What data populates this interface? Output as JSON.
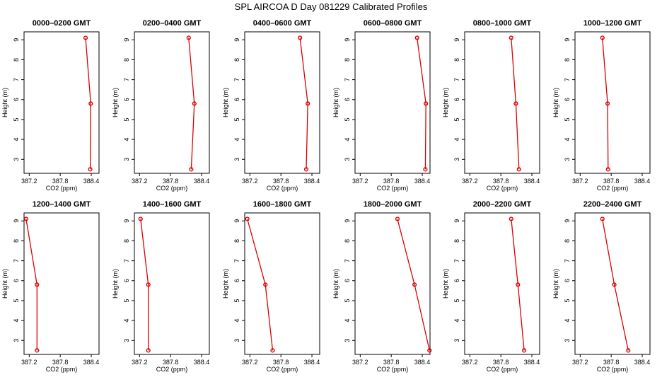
{
  "figure": {
    "title": "SPL AIRCOA D  Day 081229  Calibrated Profiles"
  },
  "colors": {
    "series": "#dd0000",
    "axis": "#000000"
  },
  "chart_data": [
    {
      "type": "line",
      "title": "0000–0200 GMT",
      "xlabel": "CO2 (ppm)",
      "ylabel": "Height (m)",
      "xlim": [
        387.1,
        388.55
      ],
      "ylim": [
        2.3,
        9.4
      ],
      "xticks": [
        "387.2",
        "387.8",
        "388.4"
      ],
      "yticks": [
        "3",
        "4",
        "5",
        "6",
        "7",
        "8",
        "9"
      ],
      "x": [
        388.29,
        388.39,
        388.38
      ],
      "y": [
        9.1,
        5.8,
        2.5
      ]
    },
    {
      "type": "line",
      "title": "0200–0400 GMT",
      "xlabel": "CO2 (ppm)",
      "ylabel": "Height (m)",
      "xlim": [
        387.1,
        388.55
      ],
      "ylim": [
        2.3,
        9.4
      ],
      "xticks": [
        "387.2",
        "387.8",
        "388.4"
      ],
      "yticks": [
        "3",
        "4",
        "5",
        "6",
        "7",
        "8",
        "9"
      ],
      "x": [
        388.15,
        388.26,
        388.2
      ],
      "y": [
        9.1,
        5.8,
        2.5
      ]
    },
    {
      "type": "line",
      "title": "0400–0600 GMT",
      "xlabel": "CO2 (ppm)",
      "ylabel": "Height (m)",
      "xlim": [
        387.1,
        388.55
      ],
      "ylim": [
        2.3,
        9.4
      ],
      "xticks": [
        "387.2",
        "387.8",
        "388.4"
      ],
      "yticks": [
        "3",
        "4",
        "5",
        "6",
        "7",
        "8",
        "9"
      ],
      "x": [
        388.17,
        388.32,
        388.29
      ],
      "y": [
        9.1,
        5.8,
        2.5
      ]
    },
    {
      "type": "line",
      "title": "0600–0800 GMT",
      "xlabel": "CO2 (ppm)",
      "ylabel": "Height (m)",
      "xlim": [
        387.1,
        388.55
      ],
      "ylim": [
        2.3,
        9.4
      ],
      "xticks": [
        "387.2",
        "387.8",
        "388.4"
      ],
      "yticks": [
        "3",
        "4",
        "5",
        "6",
        "7",
        "8",
        "9"
      ],
      "x": [
        388.3,
        388.47,
        388.46
      ],
      "y": [
        9.1,
        5.8,
        2.5
      ]
    },
    {
      "type": "line",
      "title": "0800–1000 GMT",
      "xlabel": "CO2 (ppm)",
      "ylabel": "Height (m)",
      "xlim": [
        387.1,
        388.55
      ],
      "ylim": [
        2.3,
        9.4
      ],
      "xticks": [
        "387.2",
        "387.8",
        "388.4"
      ],
      "yticks": [
        "3",
        "4",
        "5",
        "6",
        "7",
        "8",
        "9"
      ],
      "x": [
        388.0,
        388.09,
        388.15
      ],
      "y": [
        9.1,
        5.8,
        2.5
      ]
    },
    {
      "type": "line",
      "title": "1000–1200 GMT",
      "xlabel": "CO2 (ppm)",
      "ylabel": "Height (m)",
      "xlim": [
        387.1,
        388.55
      ],
      "ylim": [
        2.3,
        9.4
      ],
      "xticks": [
        "387.2",
        "387.8",
        "388.4"
      ],
      "yticks": [
        "3",
        "4",
        "5",
        "6",
        "7",
        "8",
        "9"
      ],
      "x": [
        387.63,
        387.73,
        387.74
      ],
      "y": [
        9.1,
        5.8,
        2.5
      ]
    },
    {
      "type": "line",
      "title": "1200–1400 GMT",
      "xlabel": "CO2 (ppm)",
      "ylabel": "Height (m)",
      "xlim": [
        387.1,
        388.55
      ],
      "ylim": [
        2.3,
        9.4
      ],
      "xticks": [
        "387.2",
        "387.8",
        "388.4"
      ],
      "yticks": [
        "3",
        "4",
        "5",
        "6",
        "7",
        "8",
        "9"
      ],
      "x": [
        387.14,
        387.35,
        387.35
      ],
      "y": [
        9.1,
        5.8,
        2.5
      ]
    },
    {
      "type": "line",
      "title": "1400–1600 GMT",
      "xlabel": "CO2 (ppm)",
      "ylabel": "Height (m)",
      "xlim": [
        387.1,
        388.55
      ],
      "ylim": [
        2.3,
        9.4
      ],
      "xticks": [
        "387.2",
        "387.8",
        "388.4"
      ],
      "yticks": [
        "3",
        "4",
        "5",
        "6",
        "7",
        "8",
        "9"
      ],
      "x": [
        387.22,
        387.37,
        387.37
      ],
      "y": [
        9.1,
        5.8,
        2.5
      ]
    },
    {
      "type": "line",
      "title": "1600–1800 GMT",
      "xlabel": "CO2 (ppm)",
      "ylabel": "Height (m)",
      "xlim": [
        387.1,
        388.55
      ],
      "ylim": [
        2.3,
        9.4
      ],
      "xticks": [
        "387.2",
        "387.8",
        "388.4"
      ],
      "yticks": [
        "3",
        "4",
        "5",
        "6",
        "7",
        "8",
        "9"
      ],
      "x": [
        387.15,
        387.5,
        387.64
      ],
      "y": [
        9.1,
        5.8,
        2.5
      ]
    },
    {
      "type": "line",
      "title": "1800–2000 GMT",
      "xlabel": "CO2 (ppm)",
      "ylabel": "Height (m)",
      "xlim": [
        387.1,
        388.55
      ],
      "ylim": [
        2.3,
        9.4
      ],
      "xticks": [
        "387.2",
        "387.8",
        "388.4"
      ],
      "yticks": [
        "3",
        "4",
        "5",
        "6",
        "7",
        "8",
        "9"
      ],
      "x": [
        387.92,
        388.25,
        388.54
      ],
      "y": [
        9.1,
        5.8,
        2.5
      ]
    },
    {
      "type": "line",
      "title": "2000–2200 GMT",
      "xlabel": "CO2 (ppm)",
      "ylabel": "Height (m)",
      "xlim": [
        387.1,
        388.55
      ],
      "ylim": [
        2.3,
        9.4
      ],
      "xticks": [
        "387.2",
        "387.8",
        "388.4"
      ],
      "yticks": [
        "3",
        "4",
        "5",
        "6",
        "7",
        "8",
        "9"
      ],
      "x": [
        388.0,
        388.13,
        388.25
      ],
      "y": [
        9.1,
        5.8,
        2.5
      ]
    },
    {
      "type": "line",
      "title": "2200–2400 GMT",
      "xlabel": "CO2 (ppm)",
      "ylabel": "Height (m)",
      "xlim": [
        387.1,
        388.55
      ],
      "ylim": [
        2.3,
        9.4
      ],
      "xticks": [
        "387.2",
        "387.8",
        "388.4"
      ],
      "yticks": [
        "3",
        "4",
        "5",
        "6",
        "7",
        "8",
        "9"
      ],
      "x": [
        387.63,
        387.86,
        388.13
      ],
      "y": [
        9.1,
        5.8,
        2.5
      ]
    }
  ]
}
